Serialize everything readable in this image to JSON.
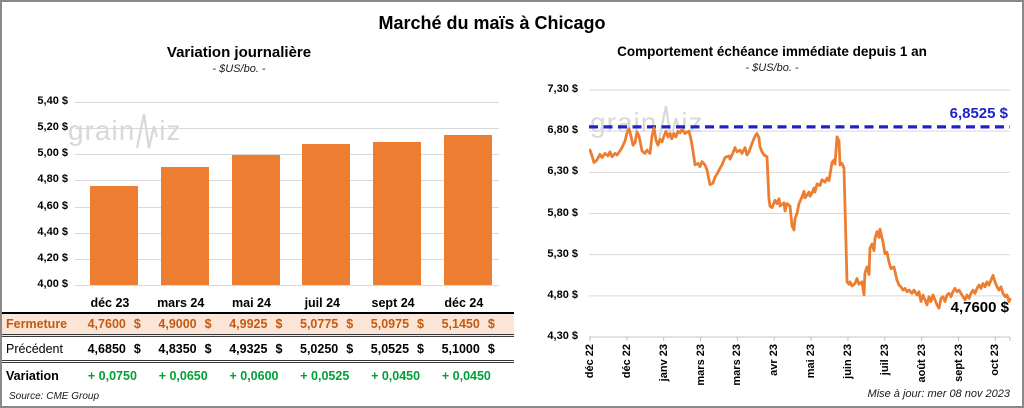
{
  "page": {
    "title": "Marché du maïs à Chicago",
    "watermark_pre": "grain",
    "watermark_post": "iz",
    "source": "Source: CME Group",
    "updated": "Mise à jour: mer 08 nov 2023"
  },
  "colors": {
    "orange": "#ED7D31",
    "fermeture_text": "#C45911",
    "fermeture_bg": "#FBE5D6",
    "variation_green": "#00A038",
    "reference_blue": "#2121C8",
    "gridline": "#D9D9D9",
    "axis": "#BFBFBF",
    "watermark": "#D8D8D8"
  },
  "chart_data": [
    {
      "type": "bar",
      "title": "Variation journalière",
      "subtitle": "- $US/bo. -",
      "categories": [
        "déc 23",
        "mars 24",
        "mai 24",
        "juil 24",
        "sept 24",
        "déc 24"
      ],
      "values": [
        4.76,
        4.9,
        4.9925,
        5.0775,
        5.0975,
        5.145
      ],
      "ylim": [
        4.0,
        5.4
      ],
      "ytick_step": 0.2,
      "ytick_labels": [
        "5,40 $",
        "5,20 $",
        "5,00 $",
        "4,80 $",
        "4,60 $",
        "4,40 $",
        "4,20 $",
        "4,00 $"
      ],
      "grid": true,
      "legend": "none",
      "bar_color": "#ED7D31"
    },
    {
      "type": "line",
      "title": "Comportement échéance immédiate depuis 1 an",
      "subtitle": "- $US/bo. -",
      "ylim": [
        4.3,
        7.3
      ],
      "ytick_labels": [
        "7,30 $",
        "6,80 $",
        "6,30 $",
        "5,80 $",
        "5,30 $",
        "4,80 $",
        "4,30 $"
      ],
      "xtick_labels": [
        "déc 22",
        "déc 22",
        "janv 23",
        "mars 23",
        "mars 23",
        "avr 23",
        "mai 23",
        "juin 23",
        "juil 23",
        "août 23",
        "sept 23",
        "oct 23"
      ],
      "grid": true,
      "legend": "none",
      "line_color": "#ED7D31",
      "reference_line": {
        "value": 6.8525,
        "label": "6,8525 $",
        "style": "dashed",
        "color": "#2121C8"
      },
      "last_value": 4.76,
      "last_point_label": "4,7600 $",
      "series": [
        {
          "name": "échéance immédiate",
          "points": [
            [
              1,
              6.57
            ],
            [
              3,
              6.5
            ],
            [
              5,
              6.42
            ],
            [
              8,
              6.45
            ],
            [
              11,
              6.52
            ],
            [
              13,
              6.48
            ],
            [
              16,
              6.53
            ],
            [
              19,
              6.5
            ],
            [
              21,
              6.55
            ],
            [
              23,
              6.49
            ],
            [
              26,
              6.53
            ],
            [
              28,
              6.51
            ],
            [
              31,
              6.56
            ],
            [
              33,
              6.6
            ],
            [
              36,
              6.68
            ],
            [
              38,
              6.78
            ],
            [
              40,
              6.83
            ],
            [
              42,
              6.74
            ],
            [
              44,
              6.63
            ],
            [
              46,
              6.66
            ],
            [
              48,
              6.79
            ],
            [
              50,
              6.74
            ],
            [
              53,
              6.56
            ],
            [
              56,
              6.53
            ],
            [
              58,
              6.57
            ],
            [
              61,
              6.53
            ],
            [
              63,
              6.74
            ],
            [
              65,
              6.84
            ],
            [
              67,
              6.69
            ],
            [
              69,
              6.63
            ],
            [
              71,
              6.7
            ],
            [
              73,
              6.67
            ],
            [
              75,
              6.74
            ],
            [
              77,
              6.8
            ],
            [
              79,
              6.73
            ],
            [
              81,
              6.77
            ],
            [
              83,
              6.71
            ],
            [
              85,
              6.77
            ],
            [
              87,
              6.73
            ],
            [
              89,
              6.8
            ],
            [
              91,
              6.78
            ],
            [
              93,
              6.82
            ],
            [
              96,
              6.77
            ],
            [
              98,
              6.79
            ],
            [
              100,
              6.8
            ],
            [
              102,
              6.7
            ],
            [
              104,
              6.56
            ],
            [
              106,
              6.39
            ],
            [
              109,
              6.41
            ],
            [
              111,
              6.37
            ],
            [
              113,
              6.43
            ],
            [
              116,
              6.39
            ],
            [
              118,
              6.33
            ],
            [
              121,
              6.15
            ],
            [
              124,
              6.17
            ],
            [
              126,
              6.24
            ],
            [
              129,
              6.3
            ],
            [
              131,
              6.35
            ],
            [
              133,
              6.39
            ],
            [
              136,
              6.48
            ],
            [
              140,
              6.5
            ],
            [
              141,
              6.46
            ],
            [
              143,
              6.51
            ],
            [
              146,
              6.6
            ],
            [
              148,
              6.55
            ],
            [
              151,
              6.57
            ],
            [
              153,
              6.53
            ],
            [
              156,
              6.6
            ],
            [
              158,
              6.51
            ],
            [
              160,
              6.55
            ],
            [
              163,
              6.65
            ],
            [
              166,
              6.74
            ],
            [
              168,
              6.77
            ],
            [
              170,
              6.72
            ],
            [
              171,
              6.61
            ],
            [
              173,
              6.55
            ],
            [
              175,
              6.51
            ],
            [
              178,
              6.49
            ],
            [
              180,
              5.97
            ],
            [
              181,
              5.89
            ],
            [
              183,
              5.87
            ],
            [
              186,
              5.96
            ],
            [
              188,
              5.92
            ],
            [
              190,
              5.98
            ],
            [
              191,
              5.89
            ],
            [
              195,
              5.93
            ],
            [
              196,
              5.83
            ],
            [
              198,
              5.92
            ],
            [
              201,
              5.89
            ],
            [
              203,
              5.65
            ],
            [
              205,
              5.6
            ],
            [
              206,
              5.74
            ],
            [
              208,
              5.8
            ],
            [
              210,
              5.92
            ],
            [
              213,
              6.0
            ],
            [
              215,
              6.07
            ],
            [
              216,
              5.99
            ],
            [
              220,
              6.06
            ],
            [
              221,
              6.01
            ],
            [
              223,
              6.05
            ],
            [
              225,
              6.11
            ],
            [
              226,
              6.06
            ],
            [
              228,
              6.16
            ],
            [
              231,
              6.14
            ],
            [
              233,
              6.21
            ],
            [
              236,
              6.18
            ],
            [
              238,
              6.23
            ],
            [
              240,
              6.2
            ],
            [
              243,
              6.42
            ],
            [
              245,
              6.45
            ],
            [
              246,
              6.4
            ],
            [
              248,
              6.73
            ],
            [
              250,
              6.68
            ],
            [
              251,
              6.39
            ],
            [
              253,
              6.41
            ],
            [
              255,
              6.35
            ],
            [
              256,
              5.89
            ],
            [
              258,
              4.97
            ],
            [
              260,
              4.94
            ],
            [
              261,
              4.97
            ],
            [
              263,
              4.92
            ],
            [
              266,
              4.95
            ],
            [
              268,
              5.01
            ],
            [
              270,
              4.94
            ],
            [
              273,
              4.97
            ],
            [
              275,
              4.81
            ],
            [
              276,
              5.08
            ],
            [
              278,
              5.15
            ],
            [
              280,
              5.06
            ],
            [
              281,
              5.38
            ],
            [
              283,
              5.43
            ],
            [
              285,
              5.35
            ],
            [
              286,
              5.5
            ],
            [
              288,
              5.58
            ],
            [
              290,
              5.51
            ],
            [
              291,
              5.61
            ],
            [
              294,
              5.45
            ],
            [
              296,
              5.31
            ],
            [
              298,
              5.33
            ],
            [
              300,
              5.21
            ],
            [
              302,
              5.13
            ],
            [
              305,
              5.15
            ],
            [
              308,
              4.99
            ],
            [
              310,
              4.93
            ],
            [
              312,
              4.91
            ],
            [
              314,
              4.87
            ],
            [
              316,
              4.89
            ],
            [
              318,
              4.85
            ],
            [
              320,
              4.87
            ],
            [
              323,
              4.83
            ],
            [
              325,
              4.87
            ],
            [
              328,
              4.81
            ],
            [
              330,
              4.85
            ],
            [
              332,
              4.73
            ],
            [
              334,
              4.81
            ],
            [
              336,
              4.75
            ],
            [
              338,
              4.69
            ],
            [
              340,
              4.79
            ],
            [
              342,
              4.73
            ],
            [
              344,
              4.81
            ],
            [
              346,
              4.75
            ],
            [
              348,
              4.69
            ],
            [
              350,
              4.65
            ],
            [
              352,
              4.77
            ],
            [
              354,
              4.79
            ],
            [
              356,
              4.73
            ],
            [
              358,
              4.81
            ],
            [
              360,
              4.83
            ],
            [
              362,
              4.79
            ],
            [
              364,
              4.85
            ],
            [
              366,
              4.89
            ],
            [
              368,
              4.85
            ],
            [
              370,
              4.87
            ],
            [
              372,
              4.83
            ],
            [
              374,
              4.79
            ],
            [
              376,
              4.75
            ],
            [
              378,
              4.81
            ],
            [
              380,
              4.77
            ],
            [
              382,
              4.83
            ],
            [
              384,
              4.87
            ],
            [
              386,
              4.83
            ],
            [
              388,
              4.89
            ],
            [
              390,
              4.93
            ],
            [
              392,
              4.89
            ],
            [
              394,
              4.95
            ],
            [
              396,
              4.91
            ],
            [
              398,
              4.97
            ],
            [
              400,
              4.93
            ],
            [
              402,
              4.99
            ],
            [
              404,
              5.05
            ],
            [
              406,
              4.97
            ],
            [
              408,
              4.91
            ],
            [
              410,
              4.87
            ],
            [
              412,
              4.91
            ],
            [
              414,
              4.83
            ],
            [
              416,
              4.79
            ],
            [
              418,
              4.81
            ],
            [
              420,
              4.73
            ],
            [
              421,
              4.76
            ]
          ]
        }
      ]
    }
  ],
  "table": {
    "col_headers": [
      "déc 23",
      "mars 24",
      "mai 24",
      "juil 24",
      "sept 24",
      "déc 24"
    ],
    "rows": [
      {
        "label": "Fermeture",
        "style": "fermeture",
        "suffix": "$",
        "values": [
          "4,7600",
          "4,9000",
          "4,9925",
          "5,0775",
          "5,0975",
          "5,1450"
        ]
      },
      {
        "label": "Précédent",
        "style": "precedent",
        "suffix": "$",
        "values": [
          "4,6850",
          "4,8350",
          "4,9325",
          "5,0250",
          "5,0525",
          "5,1000"
        ]
      },
      {
        "label": "Variation",
        "style": "variation",
        "suffix": "",
        "values": [
          "+ 0,0750",
          "+ 0,0650",
          "+ 0,0600",
          "+ 0,0525",
          "+ 0,0450",
          "+ 0,0450"
        ]
      }
    ]
  }
}
